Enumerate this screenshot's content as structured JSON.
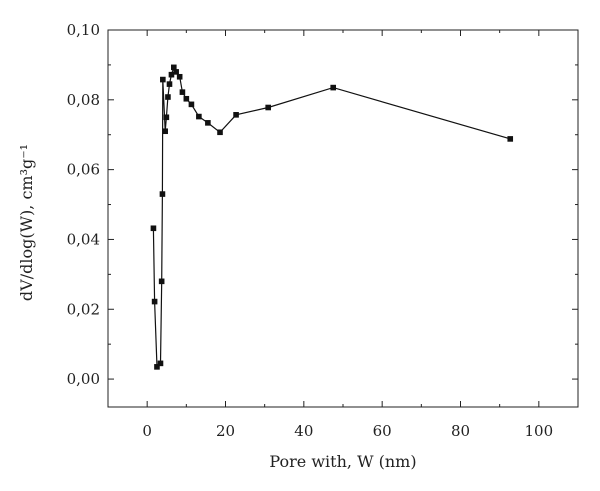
{
  "chart_data": {
    "type": "line",
    "xlabel": "Pore with, W (nm)",
    "ylabel": "dV/dlog(W), cm³g⁻¹",
    "xlim": [
      -10,
      110
    ],
    "ylim": [
      -0.008,
      0.1
    ],
    "xticks": [
      0,
      20,
      40,
      60,
      80,
      100
    ],
    "xtick_labels": [
      "0",
      "20",
      "40",
      "60",
      "80",
      "100"
    ],
    "yticks": [
      0.0,
      0.02,
      0.04,
      0.06,
      0.08,
      0.1
    ],
    "ytick_labels": [
      "0,00",
      "0,02",
      "0,04",
      "0,06",
      "0,08",
      "0,10"
    ],
    "grid": false,
    "series": [
      {
        "color": "#111111",
        "marker": "square",
        "x": [
          1.6,
          1.9,
          2.5,
          3.4,
          3.7,
          3.9,
          4.0,
          4.6,
          4.9,
          5.3,
          5.7,
          6.2,
          6.8,
          7.4,
          8.3,
          9.0,
          10.0,
          11.3,
          13.2,
          15.5,
          18.6,
          22.7,
          30.9,
          47.5,
          92.7
        ],
        "y": [
          0.0432,
          0.0222,
          0.0035,
          0.0045,
          0.028,
          0.053,
          0.0858,
          0.071,
          0.075,
          0.0808,
          0.0845,
          0.0872,
          0.0893,
          0.088,
          0.0866,
          0.0822,
          0.0803,
          0.0787,
          0.0752,
          0.0734,
          0.0707,
          0.0757,
          0.0778,
          0.0835,
          0.0688
        ]
      }
    ]
  }
}
